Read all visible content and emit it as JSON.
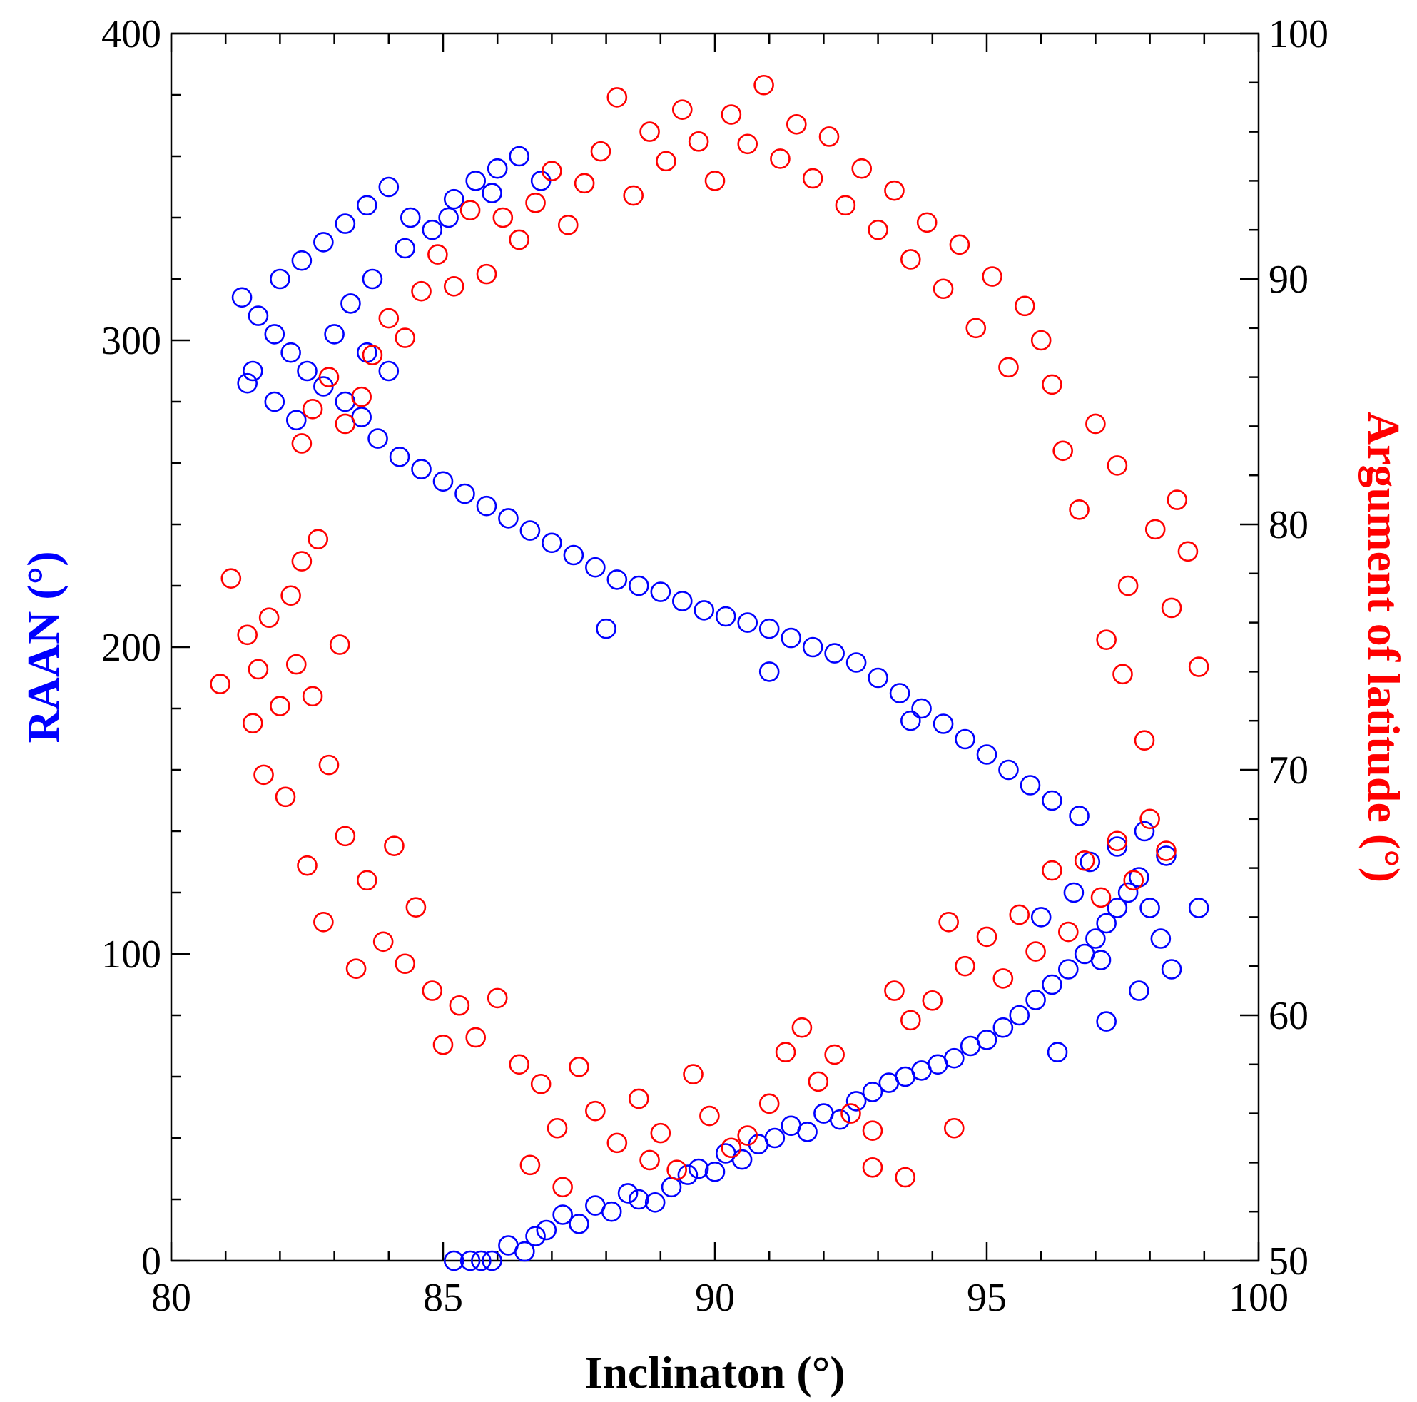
{
  "chart_data": {
    "type": "scatter",
    "title": "",
    "xlabel": "Inclinaton (°)",
    "ylabel_left": "RAAN (°)",
    "ylabel_right": "Argument of latitude (°)",
    "xlim": [
      80,
      100
    ],
    "ylim_left": [
      0,
      400
    ],
    "ylim_right": [
      50,
      100
    ],
    "x_ticks": [
      "80",
      "85",
      "90",
      "95",
      "100"
    ],
    "y_left_ticks": [
      "0",
      "100",
      "200",
      "300",
      "400"
    ],
    "y_right_ticks": [
      "50",
      "60",
      "70",
      "80",
      "90",
      "100"
    ],
    "colors": {
      "raan": "#0000ff",
      "argument_of_latitude": "#ff0000",
      "axis": "#000000"
    },
    "series": [
      {
        "name": "RAAN",
        "axis": "left",
        "color": "#0000ff",
        "points": [
          [
            85.2,
            0
          ],
          [
            85.5,
            0
          ],
          [
            85.7,
            0
          ],
          [
            85.9,
            0
          ],
          [
            86.2,
            5
          ],
          [
            86.5,
            3
          ],
          [
            86.7,
            8
          ],
          [
            86.9,
            10
          ],
          [
            87.2,
            15
          ],
          [
            87.5,
            12
          ],
          [
            87.8,
            18
          ],
          [
            88.1,
            16
          ],
          [
            88.4,
            22
          ],
          [
            88.6,
            20
          ],
          [
            88.9,
            19
          ],
          [
            89.2,
            24
          ],
          [
            89.5,
            28
          ],
          [
            89.7,
            30
          ],
          [
            90.0,
            29
          ],
          [
            90.2,
            35
          ],
          [
            90.5,
            33
          ],
          [
            90.8,
            38
          ],
          [
            91.1,
            40
          ],
          [
            91.4,
            44
          ],
          [
            91.7,
            42
          ],
          [
            92.0,
            48
          ],
          [
            92.3,
            46
          ],
          [
            92.6,
            52
          ],
          [
            92.9,
            55
          ],
          [
            93.2,
            58
          ],
          [
            93.5,
            60
          ],
          [
            93.8,
            62
          ],
          [
            94.1,
            64
          ],
          [
            94.4,
            66
          ],
          [
            94.7,
            70
          ],
          [
            95.0,
            72
          ],
          [
            95.3,
            76
          ],
          [
            95.6,
            80
          ],
          [
            95.9,
            85
          ],
          [
            96.2,
            90
          ],
          [
            96.5,
            95
          ],
          [
            96.8,
            100
          ],
          [
            97.0,
            105
          ],
          [
            97.2,
            110
          ],
          [
            97.4,
            115
          ],
          [
            97.6,
            120
          ],
          [
            97.8,
            125
          ],
          [
            98.0,
            115
          ],
          [
            98.2,
            105
          ],
          [
            98.4,
            95
          ],
          [
            98.9,
            115
          ],
          [
            97.2,
            78
          ],
          [
            97.8,
            88
          ],
          [
            96.3,
            68
          ],
          [
            96.9,
            130
          ],
          [
            97.4,
            135
          ],
          [
            97.9,
            140
          ],
          [
            98.3,
            132
          ],
          [
            96.7,
            145
          ],
          [
            96.2,
            150
          ],
          [
            95.8,
            155
          ],
          [
            95.4,
            160
          ],
          [
            95.0,
            165
          ],
          [
            94.6,
            170
          ],
          [
            94.2,
            175
          ],
          [
            93.8,
            180
          ],
          [
            93.4,
            185
          ],
          [
            93.0,
            190
          ],
          [
            92.6,
            195
          ],
          [
            92.2,
            198
          ],
          [
            91.8,
            200
          ],
          [
            91.4,
            203
          ],
          [
            91.0,
            206
          ],
          [
            90.6,
            208
          ],
          [
            90.2,
            210
          ],
          [
            89.8,
            212
          ],
          [
            89.4,
            215
          ],
          [
            89.0,
            218
          ],
          [
            88.6,
            220
          ],
          [
            88.2,
            222
          ],
          [
            87.8,
            226
          ],
          [
            87.4,
            230
          ],
          [
            87.0,
            234
          ],
          [
            86.6,
            238
          ],
          [
            86.2,
            242
          ],
          [
            85.8,
            246
          ],
          [
            85.4,
            250
          ],
          [
            85.0,
            254
          ],
          [
            84.6,
            258
          ],
          [
            84.2,
            262
          ],
          [
            83.8,
            268
          ],
          [
            83.5,
            275
          ],
          [
            83.2,
            280
          ],
          [
            82.8,
            285
          ],
          [
            82.5,
            290
          ],
          [
            82.2,
            296
          ],
          [
            81.9,
            302
          ],
          [
            81.6,
            308
          ],
          [
            81.3,
            314
          ],
          [
            81.5,
            290
          ],
          [
            81.9,
            280
          ],
          [
            82.3,
            274
          ],
          [
            81.4,
            286
          ],
          [
            82.0,
            320
          ],
          [
            82.4,
            326
          ],
          [
            82.8,
            332
          ],
          [
            83.2,
            338
          ],
          [
            83.6,
            344
          ],
          [
            84.0,
            350
          ],
          [
            84.4,
            340
          ],
          [
            84.8,
            336
          ],
          [
            85.2,
            346
          ],
          [
            85.6,
            352
          ],
          [
            86.0,
            356
          ],
          [
            86.4,
            360
          ],
          [
            86.8,
            352
          ],
          [
            85.9,
            348
          ],
          [
            85.1,
            340
          ],
          [
            84.3,
            330
          ],
          [
            83.7,
            320
          ],
          [
            83.3,
            312
          ],
          [
            83.0,
            302
          ],
          [
            83.6,
            296
          ],
          [
            84.0,
            290
          ],
          [
            88.0,
            206
          ],
          [
            91.0,
            192
          ],
          [
            93.6,
            176
          ],
          [
            96.0,
            112
          ],
          [
            96.6,
            120
          ],
          [
            97.1,
            98
          ]
        ]
      },
      {
        "name": "Argument of latitude",
        "axis": "right",
        "color": "#ff0000",
        "points": [
          [
            80.9,
            73.5
          ],
          [
            81.1,
            77.8
          ],
          [
            81.4,
            75.5
          ],
          [
            81.5,
            71.9
          ],
          [
            81.6,
            74.1
          ],
          [
            81.7,
            69.8
          ],
          [
            81.8,
            76.2
          ],
          [
            82.0,
            72.6
          ],
          [
            82.1,
            68.9
          ],
          [
            82.2,
            77.1
          ],
          [
            82.3,
            74.3
          ],
          [
            82.4,
            78.5
          ],
          [
            82.5,
            66.1
          ],
          [
            82.6,
            73.0
          ],
          [
            82.7,
            79.4
          ],
          [
            82.8,
            63.8
          ],
          [
            82.9,
            70.2
          ],
          [
            83.1,
            75.1
          ],
          [
            83.2,
            67.3
          ],
          [
            83.4,
            61.9
          ],
          [
            83.6,
            65.5
          ],
          [
            83.9,
            63.0
          ],
          [
            84.1,
            66.9
          ],
          [
            84.3,
            62.1
          ],
          [
            84.5,
            64.4
          ],
          [
            84.8,
            61.0
          ],
          [
            85.0,
            58.8
          ],
          [
            85.3,
            60.4
          ],
          [
            85.6,
            59.1
          ],
          [
            86.0,
            60.7
          ],
          [
            86.4,
            58.0
          ],
          [
            86.8,
            57.2
          ],
          [
            87.1,
            55.4
          ],
          [
            87.5,
            57.9
          ],
          [
            87.8,
            56.1
          ],
          [
            88.2,
            54.8
          ],
          [
            88.6,
            56.6
          ],
          [
            89.0,
            55.2
          ],
          [
            89.3,
            53.7
          ],
          [
            89.6,
            57.6
          ],
          [
            89.9,
            55.9
          ],
          [
            90.3,
            54.6
          ],
          [
            90.6,
            55.1
          ],
          [
            91.0,
            56.4
          ],
          [
            91.3,
            58.5
          ],
          [
            91.6,
            59.5
          ],
          [
            91.9,
            57.3
          ],
          [
            92.2,
            58.4
          ],
          [
            92.5,
            56.0
          ],
          [
            92.9,
            55.3
          ],
          [
            93.3,
            61.0
          ],
          [
            93.6,
            59.8
          ],
          [
            94.0,
            60.6
          ],
          [
            94.3,
            63.8
          ],
          [
            94.6,
            62.0
          ],
          [
            95.0,
            63.2
          ],
          [
            95.3,
            61.5
          ],
          [
            95.6,
            64.1
          ],
          [
            95.9,
            62.6
          ],
          [
            96.2,
            65.9
          ],
          [
            96.5,
            63.4
          ],
          [
            96.8,
            66.3
          ],
          [
            97.1,
            64.8
          ],
          [
            97.4,
            67.1
          ],
          [
            97.7,
            65.5
          ],
          [
            98.0,
            68.0
          ],
          [
            98.3,
            66.7
          ],
          [
            97.9,
            71.2
          ],
          [
            97.5,
            73.9
          ],
          [
            97.2,
            75.3
          ],
          [
            97.6,
            77.5
          ],
          [
            98.1,
            79.8
          ],
          [
            98.4,
            76.6
          ],
          [
            98.7,
            78.9
          ],
          [
            98.9,
            74.2
          ],
          [
            98.5,
            81.0
          ],
          [
            97.4,
            82.4
          ],
          [
            97.0,
            84.1
          ],
          [
            96.7,
            80.6
          ],
          [
            96.4,
            83.0
          ],
          [
            96.2,
            85.7
          ],
          [
            96.0,
            87.5
          ],
          [
            95.7,
            88.9
          ],
          [
            95.4,
            86.4
          ],
          [
            95.1,
            90.1
          ],
          [
            94.8,
            88.0
          ],
          [
            94.5,
            91.4
          ],
          [
            94.2,
            89.6
          ],
          [
            93.9,
            92.3
          ],
          [
            93.6,
            90.8
          ],
          [
            93.3,
            93.6
          ],
          [
            93.0,
            92.0
          ],
          [
            92.7,
            94.5
          ],
          [
            92.4,
            93.0
          ],
          [
            92.1,
            95.8
          ],
          [
            91.8,
            94.1
          ],
          [
            91.5,
            96.3
          ],
          [
            91.2,
            94.9
          ],
          [
            90.9,
            97.9
          ],
          [
            90.6,
            95.5
          ],
          [
            90.3,
            96.7
          ],
          [
            90.0,
            94.0
          ],
          [
            89.7,
            95.6
          ],
          [
            89.4,
            96.9
          ],
          [
            89.1,
            94.8
          ],
          [
            88.8,
            96.0
          ],
          [
            88.5,
            93.4
          ],
          [
            88.2,
            97.4
          ],
          [
            87.9,
            95.2
          ],
          [
            87.6,
            93.9
          ],
          [
            87.3,
            92.2
          ],
          [
            87.0,
            94.4
          ],
          [
            86.7,
            93.1
          ],
          [
            86.4,
            91.6
          ],
          [
            86.1,
            92.5
          ],
          [
            85.8,
            90.2
          ],
          [
            85.5,
            92.8
          ],
          [
            85.2,
            89.7
          ],
          [
            84.9,
            91.0
          ],
          [
            84.6,
            89.5
          ],
          [
            84.3,
            87.6
          ],
          [
            84.0,
            88.4
          ],
          [
            83.7,
            86.9
          ],
          [
            83.5,
            85.2
          ],
          [
            83.2,
            84.1
          ],
          [
            82.9,
            86.0
          ],
          [
            82.6,
            84.7
          ],
          [
            82.4,
            83.3
          ],
          [
            93.5,
            53.4
          ],
          [
            92.9,
            53.8
          ],
          [
            94.4,
            55.4
          ],
          [
            87.2,
            53.0
          ],
          [
            86.6,
            53.9
          ],
          [
            88.8,
            54.1
          ]
        ]
      }
    ]
  }
}
